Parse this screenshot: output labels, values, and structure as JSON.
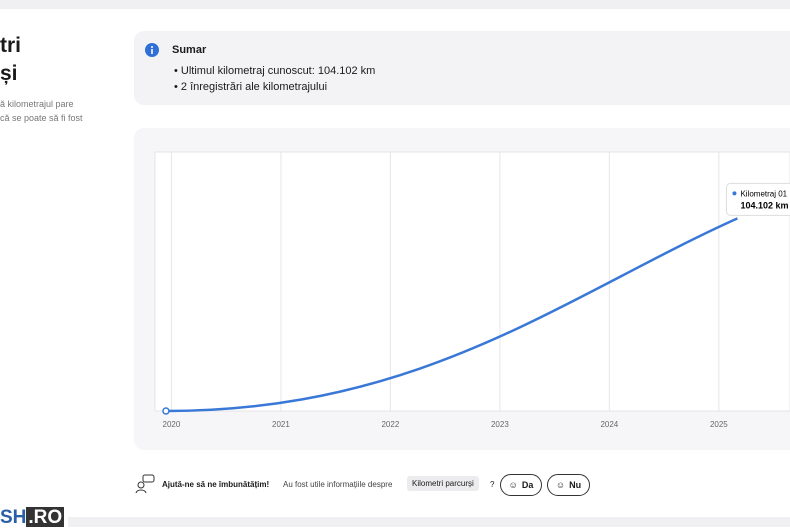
{
  "sidebar": {
    "title_lines": [
      "tri",
      "și"
    ],
    "text_lines": [
      "ă kilometrajul pare",
      "că se poate să fi fost"
    ]
  },
  "summary": {
    "title": "Sumar",
    "items": [
      "Ultimul kilometraj cunoscut: 104.102 km",
      "2 înregistrări ale kilometrajului"
    ]
  },
  "chart_data": {
    "type": "line",
    "xlim": [
      2019.85,
      2025.65
    ],
    "xticks": [
      2020,
      2021,
      2022,
      2023,
      2024,
      2025
    ],
    "ylim": [
      0,
      140000
    ],
    "grid": true,
    "series": [
      {
        "name": "Kilometraj 01",
        "color": "#3a78d8",
        "x": [
          2019.95,
          2025.17
        ],
        "values": [
          0,
          104102
        ]
      }
    ],
    "tooltip": {
      "name": "Kilometraj 01",
      "value": "104.102 km"
    }
  },
  "feedback": {
    "prompt": "Ajută-ne să ne îmbunătățim!",
    "question": "Au fost utile informațiile despre",
    "topic": "Kilometri parcurși",
    "mark": "?",
    "yes": "Da",
    "no": "Nu"
  },
  "logo": {
    "left": "SH",
    "right": ".RO"
  }
}
